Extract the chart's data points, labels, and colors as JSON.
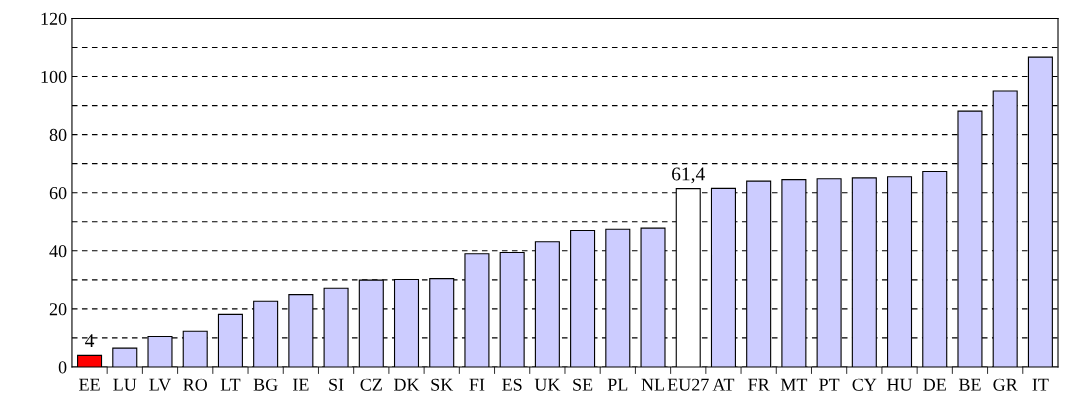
{
  "chart_data": {
    "type": "bar",
    "categories": [
      "EE",
      "LU",
      "LV",
      "RO",
      "LT",
      "BG",
      "IE",
      "SI",
      "CZ",
      "DK",
      "SK",
      "FI",
      "ES",
      "UK",
      "SE",
      "PL",
      "NL",
      "EU27",
      "AT",
      "FR",
      "MT",
      "PT",
      "CY",
      "HU",
      "DE",
      "BE",
      "GR",
      "IT"
    ],
    "values": [
      4,
      6.5,
      10.5,
      12.3,
      18.1,
      22.6,
      24.9,
      27.1,
      29.9,
      30.1,
      30.4,
      39.0,
      39.4,
      43.1,
      47.0,
      47.4,
      47.8,
      61.4,
      61.5,
      64.0,
      64.5,
      64.8,
      65.1,
      65.5,
      67.3,
      88.1,
      95.0,
      106.7
    ],
    "colors": [
      "#ff0000",
      "#ccccff",
      "#ccccff",
      "#ccccff",
      "#ccccff",
      "#ccccff",
      "#ccccff",
      "#ccccff",
      "#ccccff",
      "#ccccff",
      "#ccccff",
      "#ccccff",
      "#ccccff",
      "#ccccff",
      "#ccccff",
      "#ccccff",
      "#ccccff",
      "#ffffff",
      "#ccccff",
      "#ccccff",
      "#ccccff",
      "#ccccff",
      "#ccccff",
      "#ccccff",
      "#ccccff",
      "#ccccff",
      "#ccccff",
      "#ccccff"
    ],
    "value_labels": [
      "4",
      null,
      null,
      null,
      null,
      null,
      null,
      null,
      null,
      null,
      null,
      null,
      null,
      null,
      null,
      null,
      null,
      "61,4",
      null,
      null,
      null,
      null,
      null,
      null,
      null,
      null,
      null,
      null
    ],
    "ylim": [
      0,
      120
    ],
    "yticks": [
      0,
      {
        "value": 10,
        "label": null
      },
      20,
      {
        "value": 30,
        "label": null
      },
      40,
      {
        "value": 50,
        "label": null
      },
      60,
      {
        "value": 70,
        "label": null
      },
      80,
      {
        "value": 90,
        "label": null
      },
      100,
      {
        "value": 110,
        "label": null
      },
      120
    ],
    "grid": "y"
  }
}
